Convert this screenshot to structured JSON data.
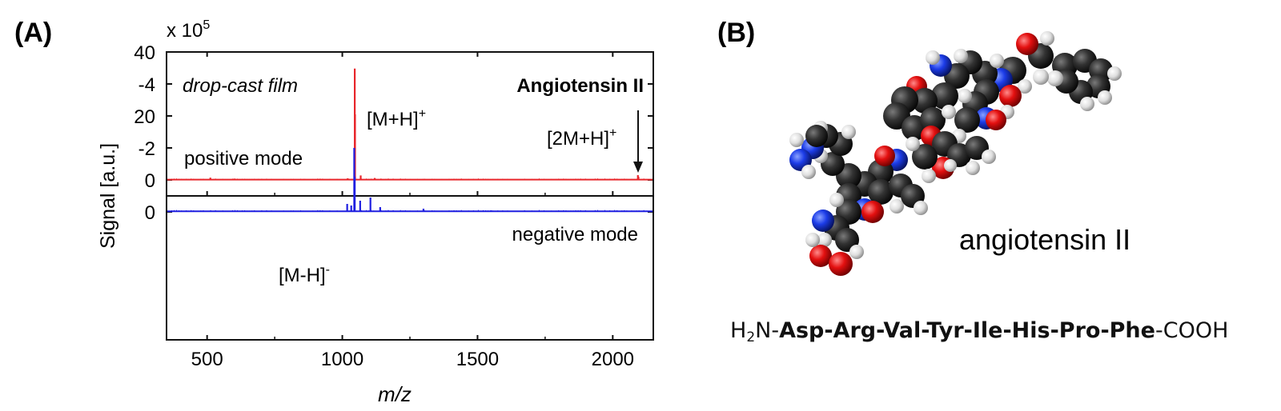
{
  "panel_a": {
    "label": "(A)",
    "multiplier_prefix": "x 10",
    "multiplier_exponent": "5",
    "ylabel": "Signal [a.u.]",
    "xlabel": "m/z",
    "note": "drop-cast film",
    "analyte": "Angiotensin II",
    "positive_mode_label": "positive mode",
    "negative_mode_label": "negative mode",
    "peak_mh_pos": {
      "base": "[M+H]",
      "charge": "+"
    },
    "peak_2mh_pos": {
      "base": "[2M+H]",
      "charge": "+"
    },
    "peak_mh_neg": {
      "base": "[M-H]",
      "charge": "-"
    }
  },
  "chart_data": [
    {
      "type": "line",
      "name": "positive mode",
      "color": "#e8262b",
      "xlim": [
        350,
        2150
      ],
      "ylim": [
        0,
        40
      ],
      "x_ticks": [
        500,
        1000,
        1500,
        2000
      ],
      "y_ticks": [
        0,
        20,
        40
      ],
      "y_multiplier": "x 10^5",
      "baseline": 0.1,
      "peaks": [
        {
          "x": 512,
          "y": 0.7
        },
        {
          "x": 600,
          "y": 0.4
        },
        {
          "x": 690,
          "y": 0.3
        },
        {
          "x": 860,
          "y": 0.3
        },
        {
          "x": 1020,
          "y": 0.5
        },
        {
          "x": 1046,
          "y": 34.8
        },
        {
          "x": 1047,
          "y": 20.5
        },
        {
          "x": 1068,
          "y": 1.4
        },
        {
          "x": 1120,
          "y": 0.6
        },
        {
          "x": 1300,
          "y": 0.3
        },
        {
          "x": 1600,
          "y": 0.2
        },
        {
          "x": 2093,
          "y": 1.5
        },
        {
          "x": 2095,
          "y": 1.0
        }
      ],
      "annotations": [
        "[M+H]+",
        "[2M+H]+"
      ]
    },
    {
      "type": "line",
      "name": "negative mode",
      "color": "#1f1fe0",
      "xlim": [
        350,
        2150
      ],
      "ylim": [
        -4,
        0.5
      ],
      "x_ticks": [
        500,
        1000,
        1500,
        2000
      ],
      "y_ticks": [
        -4,
        -2,
        0
      ],
      "baseline": -0.02,
      "peaks": [
        {
          "x": 1018,
          "y": -0.25
        },
        {
          "x": 1033,
          "y": -0.2
        },
        {
          "x": 1044,
          "y": -2.0
        },
        {
          "x": 1046,
          "y": -1.1
        },
        {
          "x": 1066,
          "y": -0.35
        },
        {
          "x": 1104,
          "y": -0.45
        },
        {
          "x": 1140,
          "y": -0.15
        },
        {
          "x": 1300,
          "y": -0.1
        },
        {
          "x": 1550,
          "y": -0.05
        }
      ],
      "annotations": [
        "[M-H]-"
      ]
    }
  ],
  "panel_b": {
    "label": "(B)",
    "molecule_name": "angiotensin II",
    "sequence_prefix": "H",
    "sequence_prefix_sub": "2",
    "sequence_prefix_end": "N-",
    "sequence_residues": "Asp-Arg-Val-Tyr-Ile-His-Pro-Phe",
    "sequence_suffix": "-COOH"
  }
}
